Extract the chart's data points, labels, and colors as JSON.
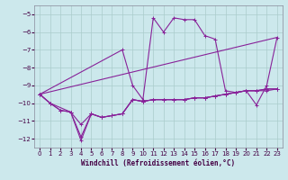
{
  "xlabel": "Windchill (Refroidissement éolien,°C)",
  "background_color": "#cce8ec",
  "grid_color": "#aacccc",
  "line_color": "#882299",
  "xlim": [
    -0.5,
    23.5
  ],
  "ylim": [
    -12.5,
    -4.5
  ],
  "yticks": [
    -12,
    -11,
    -10,
    -9,
    -8,
    -7,
    -6,
    -5
  ],
  "xticks": [
    0,
    1,
    2,
    3,
    4,
    5,
    6,
    7,
    8,
    9,
    10,
    11,
    12,
    13,
    14,
    15,
    16,
    17,
    18,
    19,
    20,
    21,
    22,
    23
  ],
  "s1_x": [
    0,
    1,
    2,
    3,
    4,
    5,
    6,
    7,
    8,
    9,
    10,
    11,
    12,
    13,
    14,
    15,
    16,
    17,
    18,
    19,
    20,
    21,
    22,
    23
  ],
  "s1_y": [
    -9.5,
    -10.0,
    -10.4,
    -10.5,
    -11.2,
    -10.6,
    -10.8,
    -10.7,
    -10.6,
    -9.8,
    -9.9,
    -9.8,
    -9.8,
    -9.8,
    -9.8,
    -9.7,
    -9.7,
    -9.6,
    -9.5,
    -9.4,
    -9.3,
    -9.3,
    -9.3,
    -9.2
  ],
  "s2_x": [
    0,
    1,
    2,
    3,
    4,
    5,
    6,
    7,
    8,
    9,
    10,
    11,
    12,
    13,
    14,
    15,
    16,
    17,
    18,
    19,
    20,
    21,
    22,
    23
  ],
  "s2_y": [
    -9.5,
    -10.0,
    -10.4,
    -10.5,
    -11.9,
    -10.6,
    -10.8,
    -10.7,
    -10.6,
    -9.8,
    -9.9,
    -9.8,
    -9.8,
    -9.8,
    -9.8,
    -9.7,
    -9.7,
    -9.6,
    -9.5,
    -9.4,
    -9.3,
    -9.3,
    -9.2,
    -9.2
  ],
  "s3_x": [
    0,
    1,
    3,
    4,
    5,
    6,
    7,
    8,
    9,
    10,
    11,
    12,
    13,
    14,
    15,
    16,
    17,
    18,
    19,
    20,
    21,
    22,
    23
  ],
  "s3_y": [
    -9.5,
    -10.0,
    -10.5,
    -12.1,
    -10.6,
    -10.8,
    -10.7,
    -10.6,
    -9.8,
    -9.9,
    -9.8,
    -9.8,
    -9.8,
    -9.8,
    -9.7,
    -9.7,
    -9.6,
    -9.5,
    -9.4,
    -9.3,
    -9.3,
    -9.2,
    -9.2
  ],
  "s4_x": [
    0,
    8,
    9,
    10,
    11,
    12,
    13,
    14,
    15,
    16,
    17,
    18,
    19,
    20,
    21,
    22,
    23
  ],
  "s4_y": [
    -9.5,
    -7.0,
    -9.0,
    -9.8,
    -5.2,
    -6.0,
    -5.2,
    -5.3,
    -5.3,
    -6.2,
    -6.4,
    -9.3,
    -9.4,
    -9.3,
    -10.1,
    -9.0,
    -6.3
  ]
}
